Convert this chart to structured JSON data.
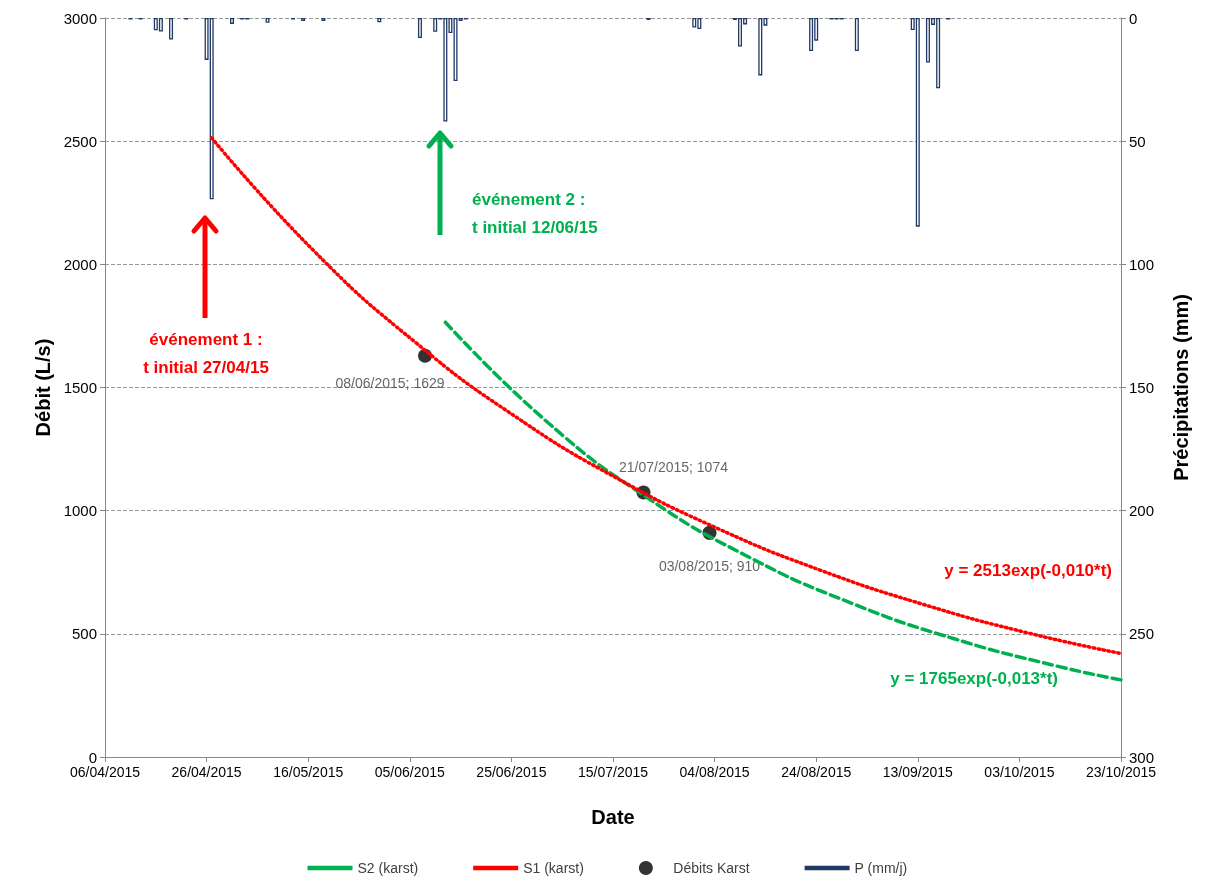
{
  "chart_data": {
    "type": "line",
    "xlabel": "Date",
    "ylabel": "Débit (L/s)",
    "y2label": "Précipitations (mm)",
    "xlim": [
      "2015-04-06",
      "2015-10-23"
    ],
    "xticks": [
      {
        "value": "2015-04-06",
        "label": "06/04/2015"
      },
      {
        "value": "2015-04-26",
        "label": "26/04/2015"
      },
      {
        "value": "2015-05-16",
        "label": "16/05/2015"
      },
      {
        "value": "2015-06-05",
        "label": "05/06/2015"
      },
      {
        "value": "2015-06-25",
        "label": "25/06/2015"
      },
      {
        "value": "2015-07-15",
        "label": "15/07/2015"
      },
      {
        "value": "2015-08-04",
        "label": "04/08/2015"
      },
      {
        "value": "2015-08-24",
        "label": "24/08/2015"
      },
      {
        "value": "2015-09-13",
        "label": "13/09/2015"
      },
      {
        "value": "2015-10-03",
        "label": "03/10/2015"
      },
      {
        "value": "2015-10-23",
        "label": "23/10/2015"
      }
    ],
    "ylim": [
      0,
      3000
    ],
    "yticks": [
      0,
      500,
      1000,
      1500,
      2000,
      2500,
      3000
    ],
    "y2lim": [
      300,
      0
    ],
    "y2ticks": [
      0,
      50,
      100,
      150,
      200,
      250,
      300
    ],
    "grid": "y",
    "legend": "bottom",
    "series": [
      {
        "name": "S2 (karst)",
        "color": "#00b050",
        "line_style": "dashed",
        "marker": "none",
        "x": [
          "2015-06-12",
          "2015-07-02",
          "2015-07-22",
          "2015-08-11",
          "2015-08-31",
          "2015-09-20",
          "2015-10-10",
          "2015-10-23"
        ],
        "values": [
          1765,
          1361,
          1049,
          809,
          624,
          481,
          371,
          313
        ]
      },
      {
        "name": "S1 (karst)",
        "color": "#ff0000",
        "line_style": "dotted",
        "marker": "none",
        "x": [
          "2015-04-27",
          "2015-05-17",
          "2015-06-06",
          "2015-06-26",
          "2015-07-16",
          "2015-08-05",
          "2015-08-25",
          "2015-09-14",
          "2015-10-04",
          "2015-10-23"
        ],
        "values": [
          2513,
          2057,
          1685,
          1379,
          1129,
          924,
          757,
          620,
          507,
          420
        ]
      },
      {
        "name": "Débits Karst",
        "type": "scatter",
        "color": "#000000",
        "marker": "circle",
        "x": [
          "2015-06-08",
          "2015-07-21",
          "2015-08-03"
        ],
        "values": [
          1629,
          1074,
          910
        ],
        "value_labels": [
          "08/06/2015; 1629",
          "21/07/2015; 1074",
          "03/08/2015; 910"
        ]
      },
      {
        "name": "P (mm/j)",
        "type": "bar",
        "axis": "y2",
        "color": "#1f3864",
        "x": [
          "2015-04-11",
          "2015-04-13",
          "2015-04-16",
          "2015-04-17",
          "2015-04-19",
          "2015-04-22",
          "2015-04-25",
          "2015-04-26",
          "2015-04-27",
          "2015-04-28",
          "2015-05-01",
          "2015-05-03",
          "2015-05-04",
          "2015-05-08",
          "2015-05-13",
          "2015-05-15",
          "2015-05-19",
          "2015-05-30",
          "2015-06-07",
          "2015-06-10",
          "2015-06-11",
          "2015-06-12",
          "2015-06-13",
          "2015-06-14",
          "2015-06-15",
          "2015-06-16",
          "2015-07-22",
          "2015-07-31",
          "2015-08-01",
          "2015-08-08",
          "2015-08-09",
          "2015-08-10",
          "2015-08-13",
          "2015-08-14",
          "2015-08-23",
          "2015-08-24",
          "2015-08-27",
          "2015-08-28",
          "2015-08-29",
          "2015-09-01",
          "2015-09-12",
          "2015-09-13",
          "2015-09-15",
          "2015-09-16",
          "2015-09-17",
          "2015-09-19"
        ],
        "values": [
          0.6,
          0.6,
          5,
          5.5,
          8.7,
          0.6,
          null,
          17,
          73.6,
          null,
          2.4,
          0.6,
          0.6,
          1.9,
          0.6,
          1.2,
          1.2,
          1.7,
          8.1,
          5.6,
          0.6,
          42,
          6.1,
          25.6,
          1.2,
          0.6,
          0.8,
          3.9,
          4.5,
          0.8,
          11.6,
          2.6,
          23.3,
          3.1,
          13.4,
          9.2,
          0.6,
          0.6,
          0.6,
          13.4,
          4.9,
          84.7,
          18.1,
          2.8,
          28.5,
          0.6
        ]
      }
    ],
    "annotations": [
      "événement 1 :\nt initial 27/04/15",
      "y = 2513exp(-0,010*t)",
      "événement 2 :\nt initial 12/06/15",
      "y = 1765exp(-0,013*t)"
    ]
  }
}
